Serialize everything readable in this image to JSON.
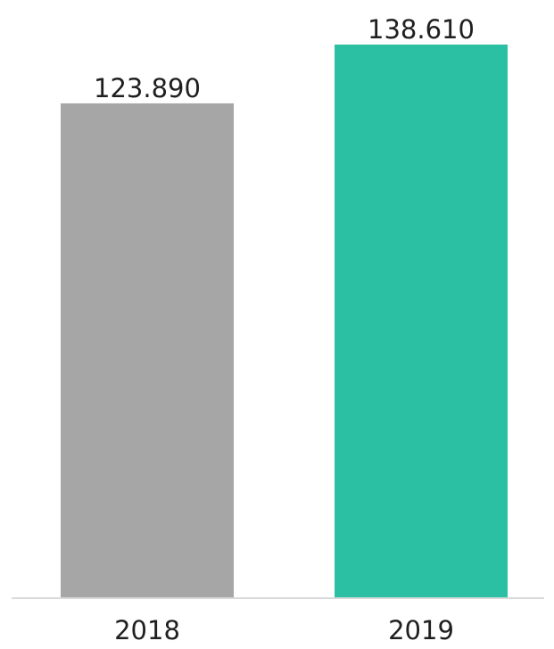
{
  "chart_data": {
    "type": "bar",
    "categories": [
      "2018",
      "2019"
    ],
    "values": [
      123.89,
      138.61
    ],
    "value_labels": [
      "123.890",
      "138.610"
    ],
    "colors": [
      "#a6a6a6",
      "#2bbfa4"
    ],
    "axis_color": "#d9d9d9",
    "label_color": "#1f1f1f",
    "ylim": [
      0,
      138.61
    ],
    "title": "",
    "xlabel": "",
    "ylabel": "",
    "grid": false,
    "legend": "none"
  }
}
